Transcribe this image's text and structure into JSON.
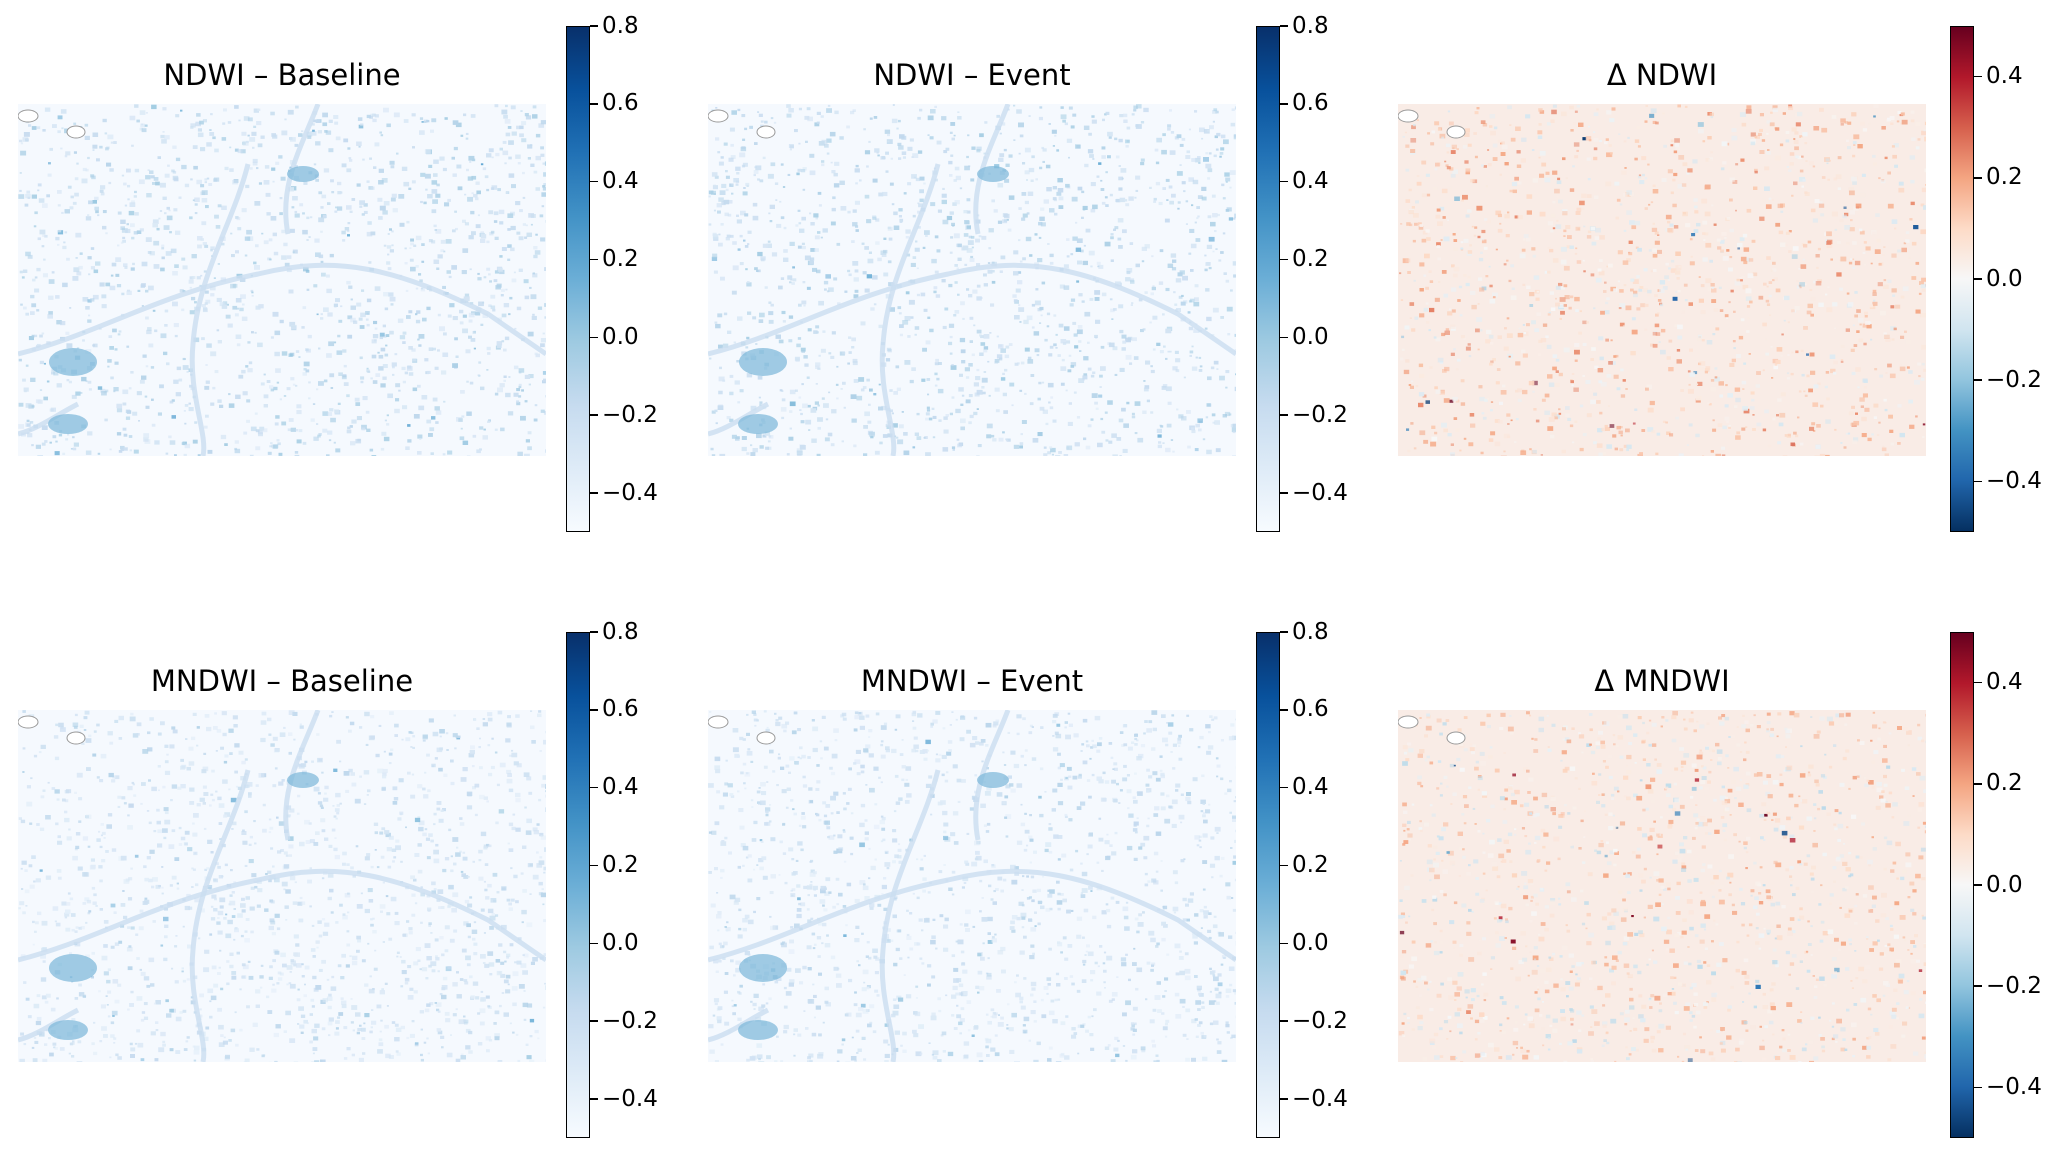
{
  "colormaps": {
    "blues": [
      "#f7fbff",
      "#deebf7",
      "#c6dbef",
      "#9ecae1",
      "#6baed6",
      "#4292c6",
      "#2171b5",
      "#08519c",
      "#08306b"
    ],
    "rdbu_r": [
      "#053061",
      "#2166ac",
      "#4393c3",
      "#92c5de",
      "#d1e5f0",
      "#f7f7f7",
      "#fddbc7",
      "#f4a582",
      "#d6604d",
      "#b2182b",
      "#67001f"
    ]
  },
  "chart_data": [
    {
      "type": "heatmap",
      "title": "NDWI – Baseline",
      "colormap": "blues",
      "vmin": -0.5,
      "vmax": 0.8,
      "colorbar_ticks": [
        0.8,
        0.6,
        0.4,
        0.2,
        0.0,
        -0.2,
        -0.4
      ],
      "colorbar_tick_labels": [
        "0.8",
        "0.6",
        "0.4",
        "0.2",
        "0.0",
        "−0.2",
        "−0.4"
      ]
    },
    {
      "type": "heatmap",
      "title": "NDWI – Event",
      "colormap": "blues",
      "vmin": -0.5,
      "vmax": 0.8,
      "colorbar_ticks": [
        0.8,
        0.6,
        0.4,
        0.2,
        0.0,
        -0.2,
        -0.4
      ],
      "colorbar_tick_labels": [
        "0.8",
        "0.6",
        "0.4",
        "0.2",
        "0.0",
        "−0.2",
        "−0.4"
      ]
    },
    {
      "type": "heatmap",
      "title": "Δ NDWI",
      "colormap": "rdbu_r",
      "vmin": -0.5,
      "vmax": 0.5,
      "colorbar_ticks": [
        0.4,
        0.2,
        0.0,
        -0.2,
        -0.4
      ],
      "colorbar_tick_labels": [
        "0.4",
        "0.2",
        "0.0",
        "−0.2",
        "−0.4"
      ]
    },
    {
      "type": "heatmap",
      "title": "MNDWI – Baseline",
      "colormap": "blues",
      "vmin": -0.5,
      "vmax": 0.8,
      "colorbar_ticks": [
        0.8,
        0.6,
        0.4,
        0.2,
        0.0,
        -0.2,
        -0.4
      ],
      "colorbar_tick_labels": [
        "0.8",
        "0.6",
        "0.4",
        "0.2",
        "0.0",
        "−0.2",
        "−0.4"
      ]
    },
    {
      "type": "heatmap",
      "title": "MNDWI – Event",
      "colormap": "blues",
      "vmin": -0.5,
      "vmax": 0.8,
      "colorbar_ticks": [
        0.8,
        0.6,
        0.4,
        0.2,
        0.0,
        -0.2,
        -0.4
      ],
      "colorbar_tick_labels": [
        "0.8",
        "0.6",
        "0.4",
        "0.2",
        "0.0",
        "−0.2",
        "−0.4"
      ]
    },
    {
      "type": "heatmap",
      "title": "Δ MNDWI",
      "colormap": "rdbu_r",
      "vmin": -0.5,
      "vmax": 0.5,
      "colorbar_ticks": [
        0.4,
        0.2,
        0.0,
        -0.2,
        -0.4
      ],
      "colorbar_tick_labels": [
        "0.4",
        "0.2",
        "0.0",
        "−0.2",
        "−0.4"
      ]
    }
  ]
}
